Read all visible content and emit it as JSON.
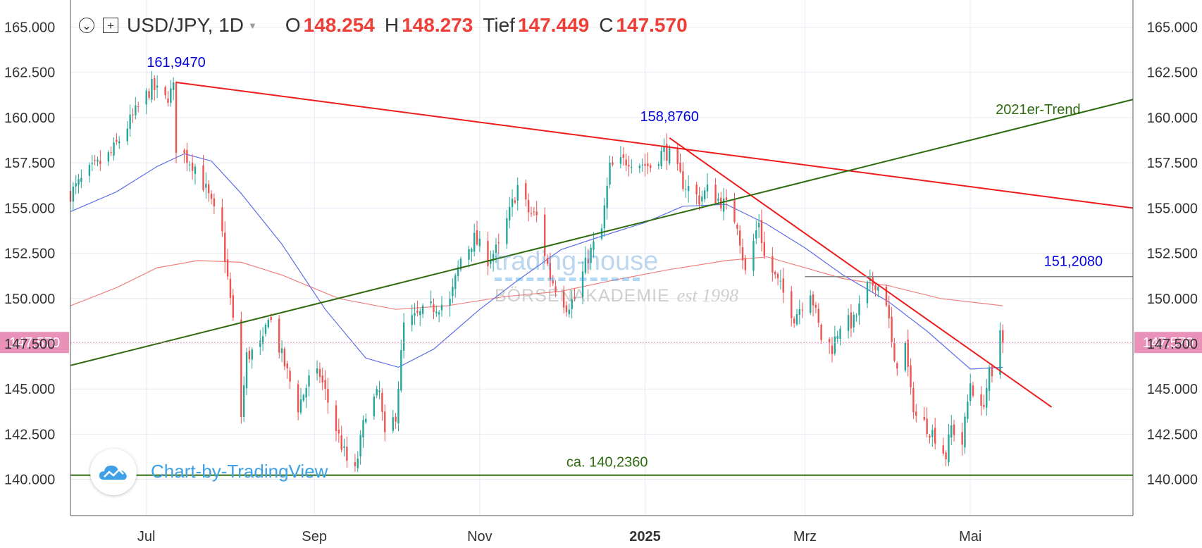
{
  "header": {
    "symbol": "USD/JPY, 1D",
    "open_label": "O",
    "open_value": "148.254",
    "high_label": "H",
    "high_value": "148.273",
    "low_label": "Tief",
    "low_value": "147.449",
    "close_label": "C",
    "close_value": "147.570"
  },
  "watermark": {
    "line1": "trading-house",
    "line2": "BÖRSENAKADEMIE",
    "line3": "est 1998",
    "chart_by": "Chart-by-TradingView"
  },
  "colors": {
    "up": "#26a69a",
    "down": "#ef5350",
    "trend_red": "#ee1c1c",
    "trend_green": "#2e6b0f",
    "ma50": "#5b6ee8",
    "ma200": "#f08080",
    "annotation_blue": "#0000dd",
    "price_tag": "#e991b8"
  },
  "chart_data": {
    "type": "candlestick",
    "title": "USD/JPY, 1D",
    "ylim": [
      138.0,
      166.5
    ],
    "y_ticks": [
      140,
      142.5,
      145,
      147.5,
      150,
      152.5,
      155,
      157.5,
      160,
      162.5,
      165
    ],
    "y_tick_labels": [
      "140.000",
      "142.500",
      "145.000",
      "147.500",
      "150.000",
      "152.500",
      "155.000",
      "157.500",
      "160.000",
      "162.500",
      "165.000"
    ],
    "x_tick_labels": [
      {
        "label": "Jul",
        "date": "2024-07-01"
      },
      {
        "label": "Sep",
        "date": "2024-09-01"
      },
      {
        "label": "Nov",
        "date": "2024-11-01"
      },
      {
        "label": "2025",
        "date": "2025-01-01",
        "bold": true
      },
      {
        "label": "Mrz",
        "date": "2025-03-01"
      },
      {
        "label": "Mai",
        "date": "2025-05-01"
      }
    ],
    "x_range": [
      "2024-06-03",
      "2025-06-30"
    ],
    "last_price": 147.57,
    "last_price_label": "147.570",
    "price_path": [
      [
        "2024-06-03",
        155.8
      ],
      [
        "2024-06-10",
        157.0
      ],
      [
        "2024-06-18",
        158.0
      ],
      [
        "2024-06-25",
        159.8
      ],
      [
        "2024-07-03",
        161.7
      ],
      [
        "2024-07-08",
        161.0
      ],
      [
        "2024-07-11",
        161.6
      ],
      [
        "2024-07-12",
        158.4
      ],
      [
        "2024-07-19",
        157.3
      ],
      [
        "2024-07-23",
        156.0
      ],
      [
        "2024-07-29",
        153.5
      ],
      [
        "2024-08-02",
        148.7
      ],
      [
        "2024-08-05",
        143.5
      ],
      [
        "2024-08-07",
        146.8
      ],
      [
        "2024-08-13",
        147.5
      ],
      [
        "2024-08-15",
        149.2
      ],
      [
        "2024-08-20",
        146.8
      ],
      [
        "2024-08-26",
        144.0
      ],
      [
        "2024-08-30",
        145.5
      ],
      [
        "2024-09-03",
        145.8
      ],
      [
        "2024-09-09",
        142.8
      ],
      [
        "2024-09-13",
        141.0
      ],
      [
        "2024-09-16",
        140.4
      ],
      [
        "2024-09-20",
        143.8
      ],
      [
        "2024-09-25",
        144.8
      ],
      [
        "2024-09-27",
        142.2
      ],
      [
        "2024-10-01",
        143.6
      ],
      [
        "2024-10-04",
        148.5
      ],
      [
        "2024-10-11",
        149.2
      ],
      [
        "2024-10-16",
        149.6
      ],
      [
        "2024-10-21",
        149.8
      ],
      [
        "2024-10-25",
        152.2
      ],
      [
        "2024-10-30",
        153.3
      ],
      [
        "2024-11-04",
        152.2
      ],
      [
        "2024-11-08",
        152.8
      ],
      [
        "2024-11-15",
        156.2
      ],
      [
        "2024-11-19",
        154.8
      ],
      [
        "2024-11-22",
        154.5
      ],
      [
        "2024-11-27",
        151.2
      ],
      [
        "2024-12-03",
        149.6
      ],
      [
        "2024-12-06",
        150.0
      ],
      [
        "2024-12-11",
        152.3
      ],
      [
        "2024-12-16",
        153.8
      ],
      [
        "2024-12-19",
        157.2
      ],
      [
        "2024-12-26",
        157.7
      ],
      [
        "2025-01-03",
        157.3
      ],
      [
        "2025-01-08",
        158.2
      ],
      [
        "2025-01-10",
        157.9
      ],
      [
        "2025-01-15",
        156.4
      ],
      [
        "2025-01-21",
        155.5
      ],
      [
        "2025-01-24",
        156.0
      ],
      [
        "2025-01-31",
        155.1
      ],
      [
        "2025-02-04",
        154.2
      ],
      [
        "2025-02-07",
        151.4
      ],
      [
        "2025-02-12",
        154.3
      ],
      [
        "2025-02-14",
        152.3
      ],
      [
        "2025-02-20",
        150.6
      ],
      [
        "2025-02-25",
        149.0
      ],
      [
        "2025-03-03",
        150.5
      ],
      [
        "2025-03-07",
        147.8
      ],
      [
        "2025-03-11",
        147.3
      ],
      [
        "2025-03-14",
        148.6
      ],
      [
        "2025-03-19",
        148.7
      ],
      [
        "2025-03-24",
        150.6
      ],
      [
        "2025-03-27",
        150.9
      ],
      [
        "2025-03-31",
        149.9
      ],
      [
        "2025-04-03",
        146.2
      ],
      [
        "2025-04-07",
        147.4
      ],
      [
        "2025-04-09",
        144.7
      ],
      [
        "2025-04-11",
        143.5
      ],
      [
        "2025-04-14",
        143.1
      ],
      [
        "2025-04-18",
        142.4
      ],
      [
        "2025-04-22",
        141.3
      ],
      [
        "2025-04-24",
        142.9
      ],
      [
        "2025-04-28",
        142.0
      ],
      [
        "2025-05-01",
        145.4
      ],
      [
        "2025-05-05",
        143.7
      ],
      [
        "2025-05-08",
        145.8
      ],
      [
        "2025-05-09",
        145.4
      ],
      [
        "2025-05-12",
        148.3
      ],
      [
        "2025-05-13",
        147.57
      ]
    ],
    "ma50": [
      [
        "2024-06-03",
        154.8
      ],
      [
        "2024-06-20",
        155.9
      ],
      [
        "2024-07-05",
        157.3
      ],
      [
        "2024-07-15",
        158.0
      ],
      [
        "2024-07-25",
        157.6
      ],
      [
        "2024-08-05",
        155.8
      ],
      [
        "2024-08-20",
        153.0
      ],
      [
        "2024-09-05",
        149.4
      ],
      [
        "2024-09-20",
        146.7
      ],
      [
        "2024-10-02",
        146.2
      ],
      [
        "2024-10-15",
        147.2
      ],
      [
        "2024-11-01",
        149.4
      ],
      [
        "2024-11-15",
        151.0
      ],
      [
        "2024-12-01",
        152.7
      ],
      [
        "2024-12-15",
        153.4
      ],
      [
        "2025-01-01",
        154.2
      ],
      [
        "2025-01-15",
        155.1
      ],
      [
        "2025-01-31",
        155.2
      ],
      [
        "2025-02-15",
        154.1
      ],
      [
        "2025-03-01",
        152.8
      ],
      [
        "2025-03-15",
        151.3
      ],
      [
        "2025-04-01",
        149.8
      ],
      [
        "2025-04-15",
        148.2
      ],
      [
        "2025-05-01",
        146.1
      ],
      [
        "2025-05-13",
        146.2
      ]
    ],
    "ma200": [
      [
        "2024-06-03",
        149.6
      ],
      [
        "2024-06-20",
        150.6
      ],
      [
        "2024-07-05",
        151.7
      ],
      [
        "2024-07-20",
        152.1
      ],
      [
        "2024-08-05",
        152.0
      ],
      [
        "2024-08-20",
        151.3
      ],
      [
        "2024-09-10",
        150.0
      ],
      [
        "2024-10-01",
        149.4
      ],
      [
        "2024-10-20",
        149.6
      ],
      [
        "2024-11-10",
        150.1
      ],
      [
        "2024-12-01",
        150.4
      ],
      [
        "2024-12-20",
        151.0
      ],
      [
        "2025-01-10",
        151.6
      ],
      [
        "2025-01-31",
        152.1
      ],
      [
        "2025-02-15",
        152.3
      ],
      [
        "2025-03-01",
        151.7
      ],
      [
        "2025-03-15",
        151.1
      ],
      [
        "2025-04-01",
        150.7
      ],
      [
        "2025-04-20",
        150.0
      ],
      [
        "2025-05-13",
        149.6
      ]
    ],
    "lines": [
      {
        "name": "long-downtrend",
        "color": "trend_red",
        "points": [
          [
            "2024-07-12",
            161.947
          ],
          [
            "2025-06-30",
            155.0
          ]
        ]
      },
      {
        "name": "short-downtrend",
        "color": "trend_red",
        "points": [
          [
            "2025-01-10",
            158.876
          ],
          [
            "2025-05-31",
            144.0
          ]
        ]
      },
      {
        "name": "2021er-trend",
        "color": "trend_green",
        "points": [
          [
            "2024-06-03",
            146.3
          ],
          [
            "2025-06-30",
            161.0
          ]
        ]
      },
      {
        "name": "support",
        "color": "trend_green",
        "points": [
          [
            "2024-06-03",
            140.236
          ],
          [
            "2025-06-30",
            140.236
          ]
        ]
      },
      {
        "name": "resistance",
        "color": "#888888",
        "points": [
          [
            "2025-03-01",
            151.208
          ],
          [
            "2025-06-30",
            151.208
          ]
        ]
      }
    ],
    "annotations": [
      {
        "text": "161,9470",
        "date": "2024-07-12",
        "value": 162.8,
        "color": "annotation_blue"
      },
      {
        "text": "158,8760",
        "date": "2025-01-10",
        "value": 159.8,
        "color": "annotation_blue"
      },
      {
        "text": "151,2080",
        "date": "2025-06-08",
        "value": 151.8,
        "color": "annotation_blue"
      },
      {
        "text": "2021er-Trend",
        "date": "2025-05-26",
        "value": 160.2,
        "color": "trend_green"
      },
      {
        "text": "ca. 140,2360",
        "date": "2024-12-18",
        "value": 140.7,
        "color": "trend_green"
      }
    ]
  }
}
